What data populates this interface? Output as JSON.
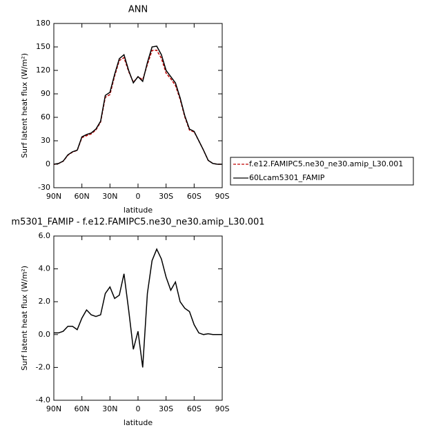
{
  "chart_data": [
    {
      "type": "line",
      "title": "ANN",
      "ylabel": "Surf latent heat flux (W/m²)",
      "xlabel": "latitude",
      "x": [
        90,
        85,
        80,
        75,
        70,
        65,
        60,
        55,
        50,
        45,
        40,
        35,
        30,
        25,
        20,
        15,
        10,
        5,
        0,
        -5,
        -10,
        -15,
        -20,
        -25,
        -30,
        -35,
        -40,
        -45,
        -50,
        -55,
        -60,
        -65,
        -70,
        -75,
        -80,
        -85,
        -90
      ],
      "xlim": [
        90,
        -90
      ],
      "xticks": [
        {
          "value": 90,
          "label": "90N"
        },
        {
          "value": 60,
          "label": "60N"
        },
        {
          "value": 30,
          "label": "30N"
        },
        0,
        {
          "value": -30,
          "label": "30S"
        },
        {
          "value": -60,
          "label": "60S"
        },
        {
          "value": -90,
          "label": "90S"
        }
      ],
      "ylim": [
        -30,
        180
      ],
      "yticks": [
        -30,
        0,
        30,
        60,
        90,
        120,
        150,
        180
      ],
      "legend": "right",
      "series": [
        {
          "name": "f.e12.FAMIPC5.ne30_ne30.amip_L30.001",
          "color": "#c00000",
          "linestyle": "dashed",
          "values": [
            -0.1,
            0.9,
            3.8,
            11.5,
            15.5,
            17.7,
            34,
            36.5,
            38.8,
            43.9,
            53.8,
            85.5,
            89.1,
            112.8,
            132.6,
            136.3,
            118.5,
            104.9,
            111.8,
            108,
            127.5,
            145.5,
            145.8,
            135.4,
            116.5,
            109.3,
            100.8,
            83,
            60.4,
            43.6,
            41.4,
            29.9,
            18,
            4.95,
            1,
            0,
            0
          ]
        },
        {
          "name": "60Lcam5301_FAMIP",
          "color": "#000000",
          "linestyle": "solid",
          "values": [
            0,
            1,
            4,
            12,
            16,
            18,
            35,
            38,
            40,
            45,
            55,
            88,
            92,
            115,
            135,
            140,
            120,
            104,
            112,
            106,
            130,
            150,
            151,
            140,
            120,
            112,
            104,
            85,
            62,
            45,
            42,
            30,
            18,
            5,
            1,
            0,
            0
          ]
        }
      ]
    },
    {
      "type": "line",
      "title": "m5301_FAMIP - f.e12.FAMIPC5.ne30_ne30.amip_L30.001",
      "ylabel": "Surf latent heat flux (W/m²)",
      "xlabel": "latitude",
      "x": [
        90,
        85,
        80,
        75,
        70,
        65,
        60,
        55,
        50,
        45,
        40,
        35,
        30,
        25,
        20,
        15,
        10,
        5,
        0,
        -5,
        -10,
        -15,
        -20,
        -25,
        -30,
        -35,
        -40,
        -45,
        -50,
        -55,
        -60,
        -65,
        -70,
        -75,
        -80,
        -85,
        -90
      ],
      "xlim": [
        90,
        -90
      ],
      "xticks": [
        {
          "value": 90,
          "label": "90N"
        },
        {
          "value": 60,
          "label": "60N"
        },
        {
          "value": 30,
          "label": "30N"
        },
        0,
        {
          "value": -30,
          "label": "30S"
        },
        {
          "value": -60,
          "label": "60S"
        },
        {
          "value": -90,
          "label": "90S"
        }
      ],
      "ylim": [
        -4,
        6
      ],
      "yticks": [
        {
          "value": -4,
          "label": "-4.0"
        },
        {
          "value": -2,
          "label": "-2.0"
        },
        {
          "value": 0,
          "label": "0.0"
        },
        {
          "value": 2,
          "label": "2.0"
        },
        {
          "value": 4,
          "label": "4.0"
        },
        {
          "value": 6,
          "label": "6.0"
        }
      ],
      "series": [
        {
          "color": "#000000",
          "linestyle": "solid",
          "values": [
            0.1,
            0.1,
            0.2,
            0.5,
            0.5,
            0.3,
            1.0,
            1.5,
            1.2,
            1.1,
            1.2,
            2.5,
            2.9,
            2.2,
            2.4,
            3.7,
            1.5,
            -0.9,
            0.2,
            -2.0,
            2.5,
            4.5,
            5.2,
            4.6,
            3.5,
            2.7,
            3.2,
            2.0,
            1.6,
            1.4,
            0.6,
            0.1,
            0.0,
            0.05,
            0,
            0,
            0
          ]
        }
      ]
    }
  ]
}
